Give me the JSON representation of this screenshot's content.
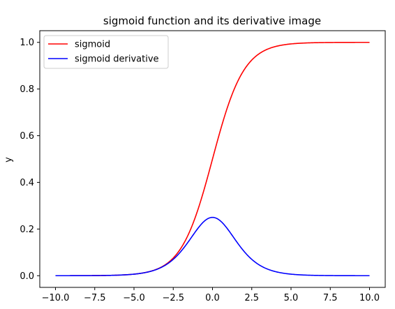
{
  "chart_data": {
    "type": "line",
    "title": "sigmoid function and its derivative image",
    "xlabel": "",
    "ylabel": "y",
    "xlim": [
      -11.0,
      11.0
    ],
    "ylim": [
      -0.05,
      1.05
    ],
    "xticks": [
      -10.0,
      -7.5,
      -5.0,
      -2.5,
      0.0,
      2.5,
      5.0,
      7.5,
      10.0
    ],
    "xtick_labels": [
      "−10.0",
      "−7.5",
      "−5.0",
      "−2.5",
      "0.0",
      "2.5",
      "5.0",
      "7.5",
      "10.0"
    ],
    "yticks": [
      0.0,
      0.2,
      0.4,
      0.6,
      0.8,
      1.0
    ],
    "ytick_labels": [
      "0.0",
      "0.2",
      "0.4",
      "0.6",
      "0.8",
      "1.0"
    ],
    "grid": false,
    "legend_position": "top-left",
    "x": [
      -10,
      -9,
      -8,
      -7,
      -6,
      -5,
      -4.5,
      -4,
      -3.5,
      -3,
      -2.5,
      -2,
      -1.5,
      -1,
      -0.5,
      0,
      0.5,
      1,
      1.5,
      2,
      2.5,
      3,
      3.5,
      4,
      4.5,
      5,
      6,
      7,
      8,
      9,
      10
    ],
    "series": [
      {
        "name": "sigmoid",
        "color": "#ff0000",
        "values": [
          4.54e-05,
          0.0001234,
          0.0003354,
          0.0009111,
          0.0024726,
          0.0066929,
          0.0109869,
          0.0179862,
          0.0293122,
          0.0474259,
          0.0758582,
          0.1192029,
          0.1824255,
          0.2689414,
          0.3775407,
          0.5,
          0.6224593,
          0.7310586,
          0.8175745,
          0.8807971,
          0.9241418,
          0.9525741,
          0.9706878,
          0.9820138,
          0.9890131,
          0.9933071,
          0.9975274,
          0.9990889,
          0.9996646,
          0.9998766,
          0.9999546
        ]
      },
      {
        "name": "sigmoid derivative",
        "color": "#0000ff",
        "values": [
          4.54e-05,
          0.0001234,
          0.0003353,
          0.0009102,
          0.0024665,
          0.0066481,
          0.0108662,
          0.0176627,
          0.028453,
          0.0451767,
          0.0706508,
          0.1049936,
          0.1491465,
          0.1966119,
          0.2350037,
          0.25,
          0.2350037,
          0.1966119,
          0.1491465,
          0.1049936,
          0.0706508,
          0.0451767,
          0.028453,
          0.0176627,
          0.0108662,
          0.0066481,
          0.0024665,
          0.0009102,
          0.0003353,
          0.0001234,
          4.54e-05
        ]
      }
    ]
  }
}
